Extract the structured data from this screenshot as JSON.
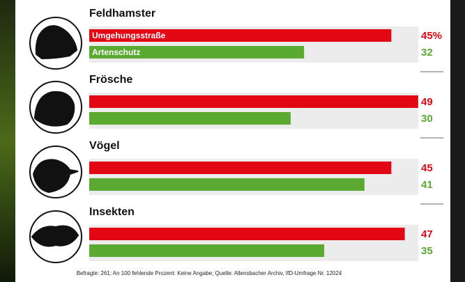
{
  "chart_data": {
    "type": "bar",
    "orientation": "horizontal",
    "categories": [
      "Feldhamster",
      "Frösche",
      "Vögel",
      "Insekten"
    ],
    "series": [
      {
        "name": "Umgehungsstraße",
        "color": "#e30613",
        "values": [
          45,
          49,
          45,
          47
        ],
        "value_labels": [
          "45%",
          "49",
          "45",
          "47"
        ]
      },
      {
        "name": "Artenschutz",
        "color": "#5aaa32",
        "values": [
          32,
          30,
          41,
          35
        ]
      }
    ],
    "footnote": "Befragte: 261; An 100 fehlende Prozent: Keine Angabe; Quelle: Allensbacher Archiv, IfD-Umfrage Nr. 12024"
  }
}
